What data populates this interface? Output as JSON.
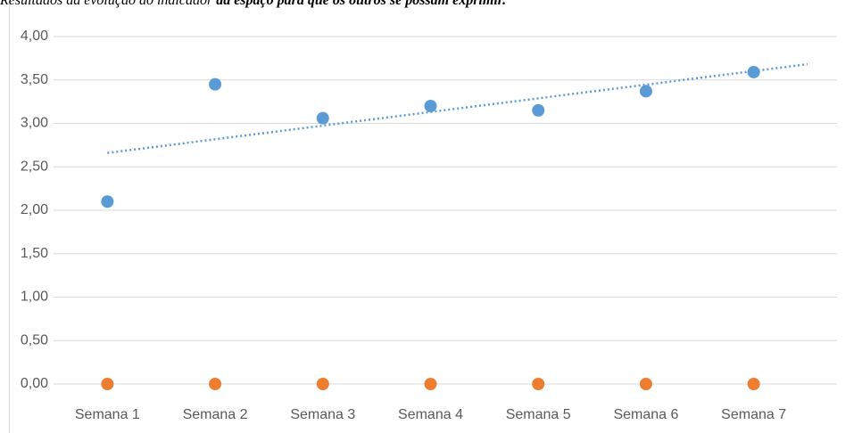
{
  "chart_data": {
    "type": "scatter",
    "title": "Resultados da evolução do indicador",
    "subtitle": "dá espaço para que os outros se possam exprimir.",
    "categories": [
      "Semana 1",
      "Semana 2",
      "Semana 3",
      "Semana 4",
      "Semana 5",
      "Semana 6",
      "Semana 7"
    ],
    "series": [
      {
        "color": "#5b9bd5",
        "values": [
          2.1,
          3.45,
          3.06,
          3.2,
          3.15,
          3.37,
          3.59
        ],
        "trendline": "linear"
      },
      {
        "color": "#ed7d31",
        "values": [
          0,
          0,
          0,
          0,
          0,
          0,
          0
        ]
      }
    ],
    "ylim": [
      0,
      4
    ],
    "yticks": [
      {
        "value": 0,
        "label": "0,00"
      },
      {
        "value": 0.5,
        "label": "0,50"
      },
      {
        "value": 1,
        "label": "1,00"
      },
      {
        "value": 1.5,
        "label": "1,50"
      },
      {
        "value": 2,
        "label": "2,00"
      },
      {
        "value": 2.5,
        "label": "2,50"
      },
      {
        "value": 3,
        "label": "3,00"
      },
      {
        "value": 3.5,
        "label": "3,50"
      },
      {
        "value": 4,
        "label": "4,00"
      }
    ],
    "grid": true
  }
}
